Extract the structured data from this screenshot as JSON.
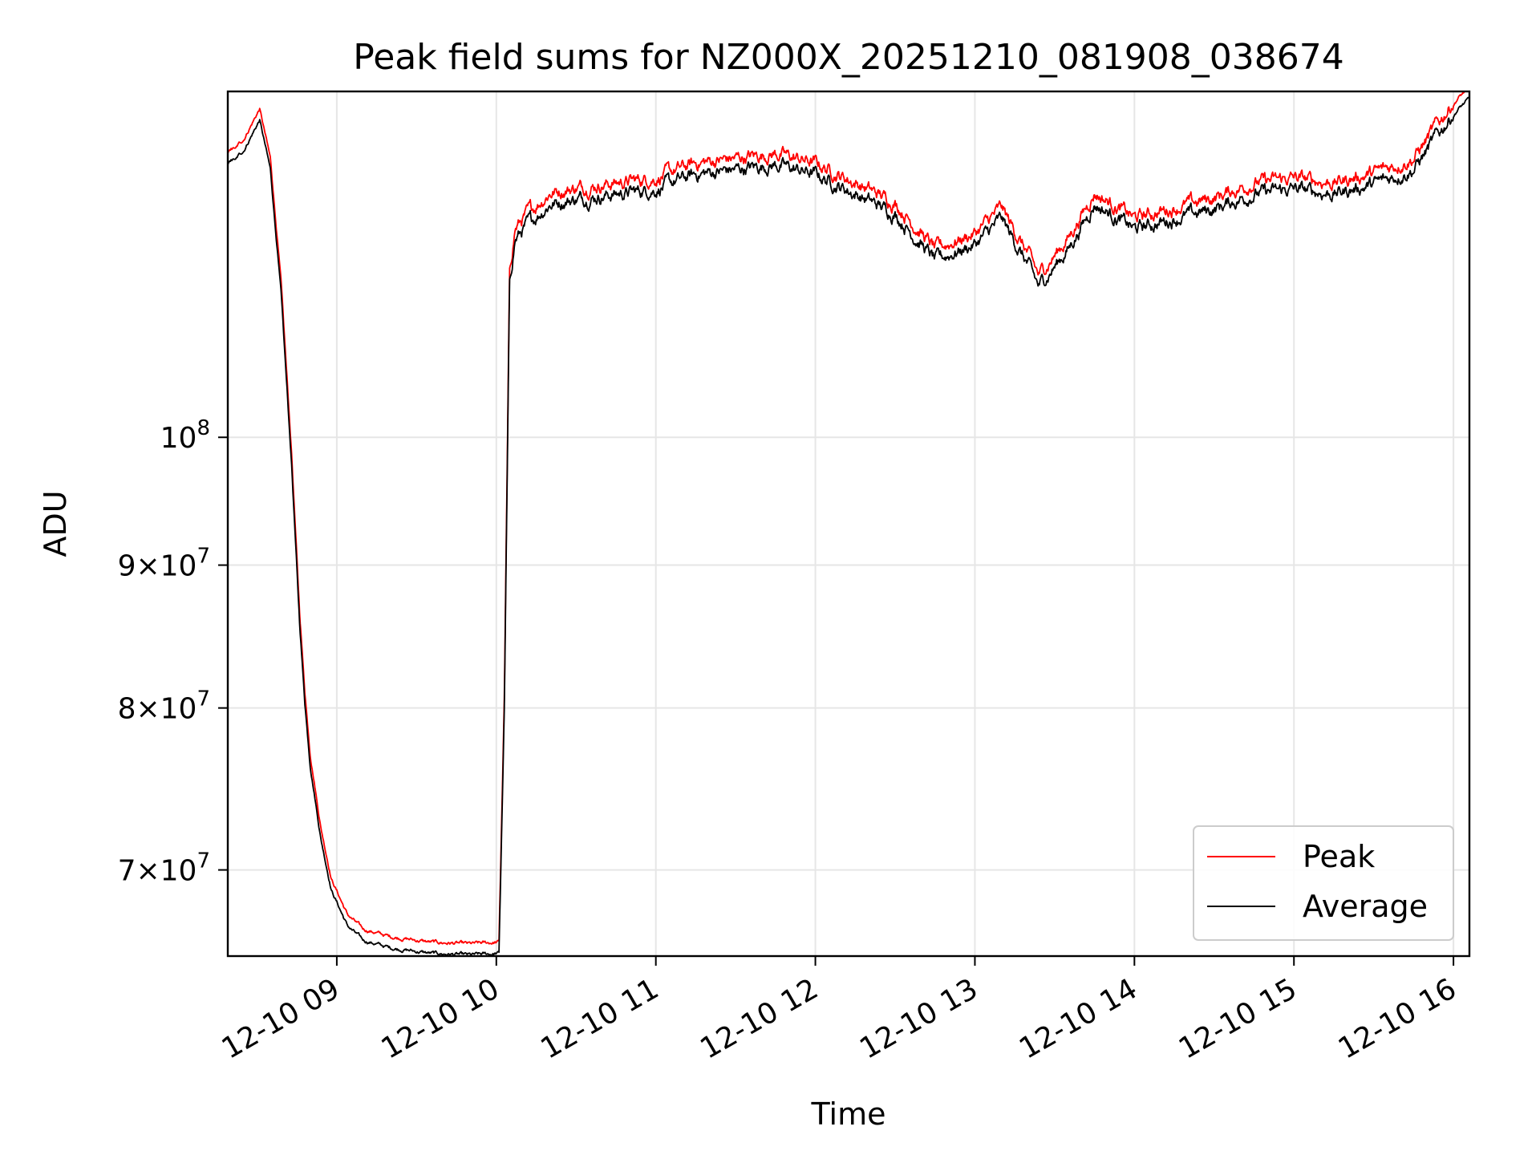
{
  "chart_data": {
    "type": "line",
    "title": "Peak field sums for NZ000X_20251210_081908_038674",
    "xlabel": "Time",
    "ylabel": "ADU",
    "y_scale": "log",
    "grid": true,
    "legend_placement": "lower-right",
    "xlim": [
      "2025-12-10 08:19",
      "2025-12-10 16:06"
    ],
    "ylim": [
      65200000,
      133000000
    ],
    "x_ticks": [
      {
        "value": "2025-12-10 09:00",
        "label": "12-10 09"
      },
      {
        "value": "2025-12-10 10:00",
        "label": "12-10 10"
      },
      {
        "value": "2025-12-10 11:00",
        "label": "12-10 11"
      },
      {
        "value": "2025-12-10 12:00",
        "label": "12-10 12"
      },
      {
        "value": "2025-12-10 13:00",
        "label": "12-10 13"
      },
      {
        "value": "2025-12-10 14:00",
        "label": "12-10 14"
      },
      {
        "value": "2025-12-10 15:00",
        "label": "12-10 15"
      },
      {
        "value": "2025-12-10 16:00",
        "label": "12-10 16"
      }
    ],
    "y_ticks": [
      {
        "value": 100000000,
        "coef": "",
        "exp": "8"
      },
      {
        "value": 90000000,
        "coef": "9",
        "exp": "7"
      },
      {
        "value": 80000000,
        "coef": "8",
        "exp": "7"
      },
      {
        "value": 70000000,
        "coef": "7",
        "exp": "7"
      }
    ],
    "series": [
      {
        "name": "Peak",
        "color": "#ff0000",
        "offset": 0.003
      },
      {
        "name": "Average",
        "color": "#000000",
        "offset": -0.001
      }
    ],
    "x": [
      "2025-12-10 08:19",
      "2025-12-10 08:25",
      "2025-12-10 08:31",
      "2025-12-10 08:35",
      "2025-12-10 08:39",
      "2025-12-10 08:43",
      "2025-12-10 08:46",
      "2025-12-10 08:48",
      "2025-12-10 08:50",
      "2025-12-10 08:54",
      "2025-12-10 08:58",
      "2025-12-10 09:04",
      "2025-12-10 09:10",
      "2025-12-10 09:20",
      "2025-12-10 09:35",
      "2025-12-10 09:50",
      "2025-12-10 10:01",
      "2025-12-10 10:03",
      "2025-12-10 10:05",
      "2025-12-10 10:07",
      "2025-12-10 10:12",
      "2025-12-10 10:20",
      "2025-12-10 10:30",
      "2025-12-10 10:45",
      "2025-12-10 11:00",
      "2025-12-10 11:15",
      "2025-12-10 11:30",
      "2025-12-10 11:45",
      "2025-12-10 12:00",
      "2025-12-10 12:15",
      "2025-12-10 12:30",
      "2025-12-10 12:45",
      "2025-12-10 13:00",
      "2025-12-10 13:10",
      "2025-12-10 13:20",
      "2025-12-10 13:24",
      "2025-12-10 13:35",
      "2025-12-10 13:45",
      "2025-12-10 14:00",
      "2025-12-10 14:15",
      "2025-12-10 14:30",
      "2025-12-10 14:45",
      "2025-12-10 15:00",
      "2025-12-10 15:15",
      "2025-12-10 15:30",
      "2025-12-10 15:45",
      "2025-12-10 16:00",
      "2025-12-10 16:06"
    ],
    "values": [
      125500000,
      127000000,
      130200000,
      125000000,
      113000000,
      98000000,
      86000000,
      80500000,
      76500000,
      72000000,
      69000000,
      67000000,
      66200000,
      65800000,
      65500000,
      65400000,
      65500000,
      80000000,
      114000000,
      118000000,
      119500000,
      121500000,
      122000000,
      122500000,
      123000000,
      124500000,
      125000000,
      125500000,
      124500000,
      122500000,
      120500000,
      116000000,
      117500000,
      120000000,
      115500000,
      113500000,
      117000000,
      121500000,
      119000000,
      120000000,
      121000000,
      122500000,
      123000000,
      122500000,
      123500000,
      125000000,
      131000000,
      132500000
    ]
  },
  "legend": {
    "items": [
      {
        "label": "Peak",
        "color": "#ff0000"
      },
      {
        "label": "Average",
        "color": "#000000"
      }
    ]
  }
}
